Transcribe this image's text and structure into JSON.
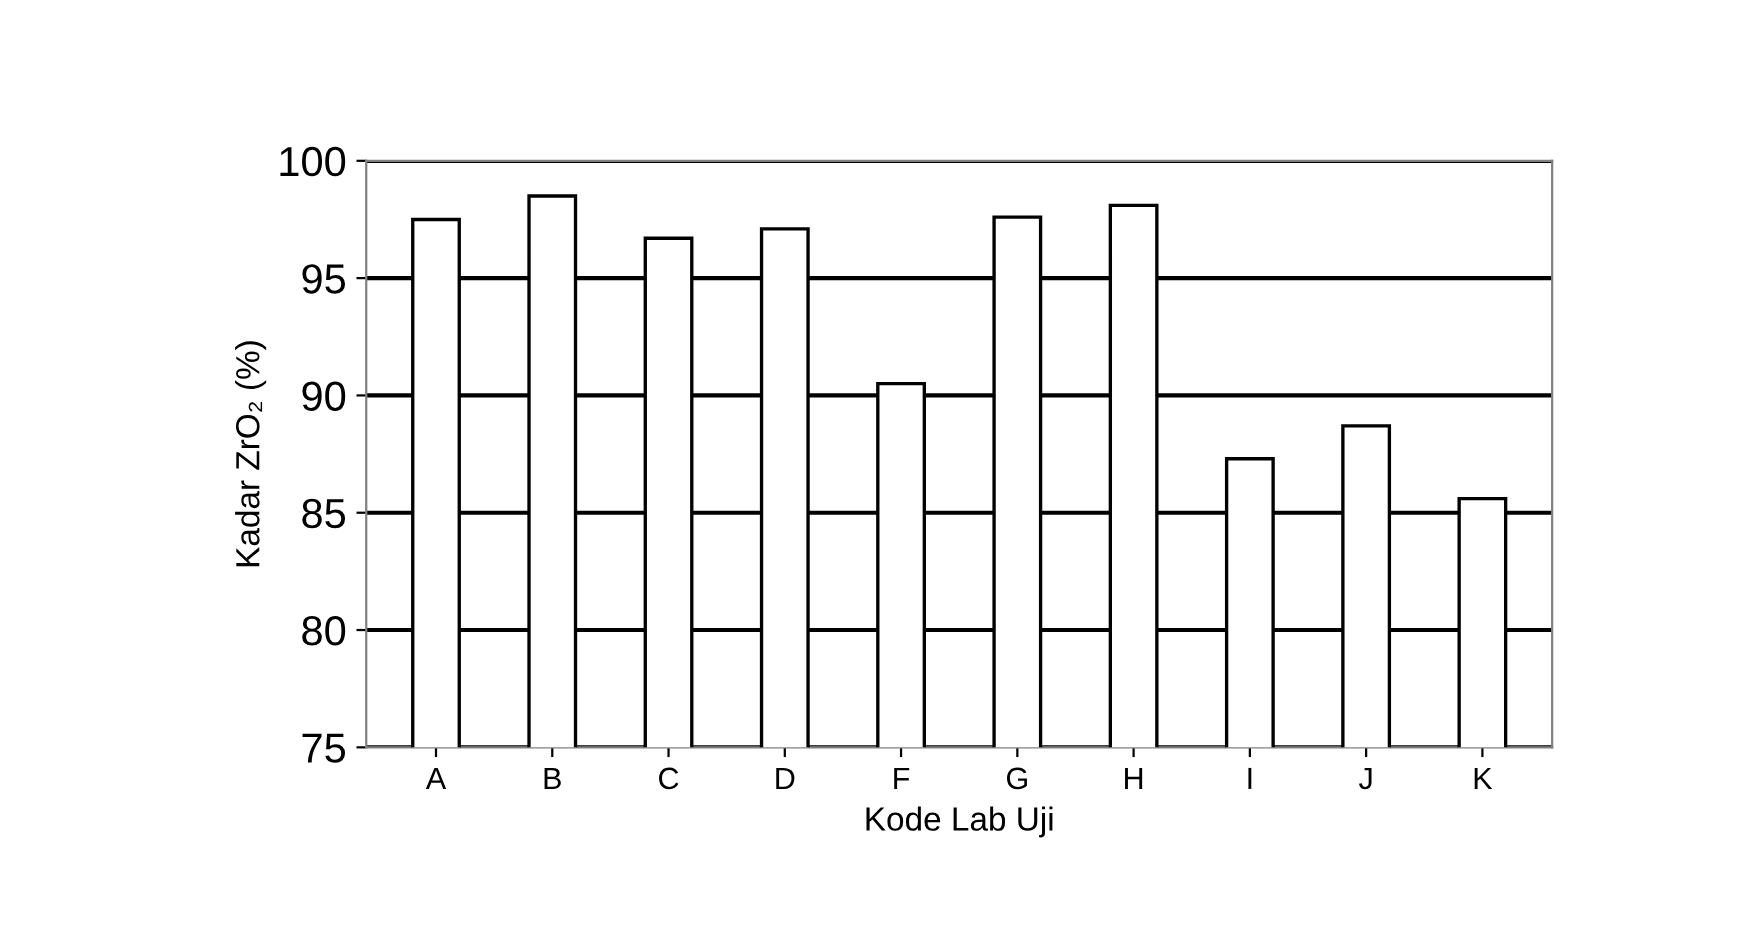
{
  "chart_data": {
    "type": "bar",
    "xlabel": "Kode Lab Uji",
    "ylabel": "Kadar ZrO₂ (%)",
    "categories": [
      "A",
      "B",
      "C",
      "D",
      "F",
      "G",
      "H",
      "I",
      "J",
      "K"
    ],
    "values": [
      97.5,
      98.5,
      96.7,
      97.1,
      90.5,
      97.6,
      98.1,
      87.3,
      88.7,
      85.6
    ],
    "color": "#ffffff",
    "ylim": [
      75,
      100
    ],
    "yticks": [
      75,
      80,
      85,
      90,
      95,
      100
    ],
    "grid": "y"
  }
}
